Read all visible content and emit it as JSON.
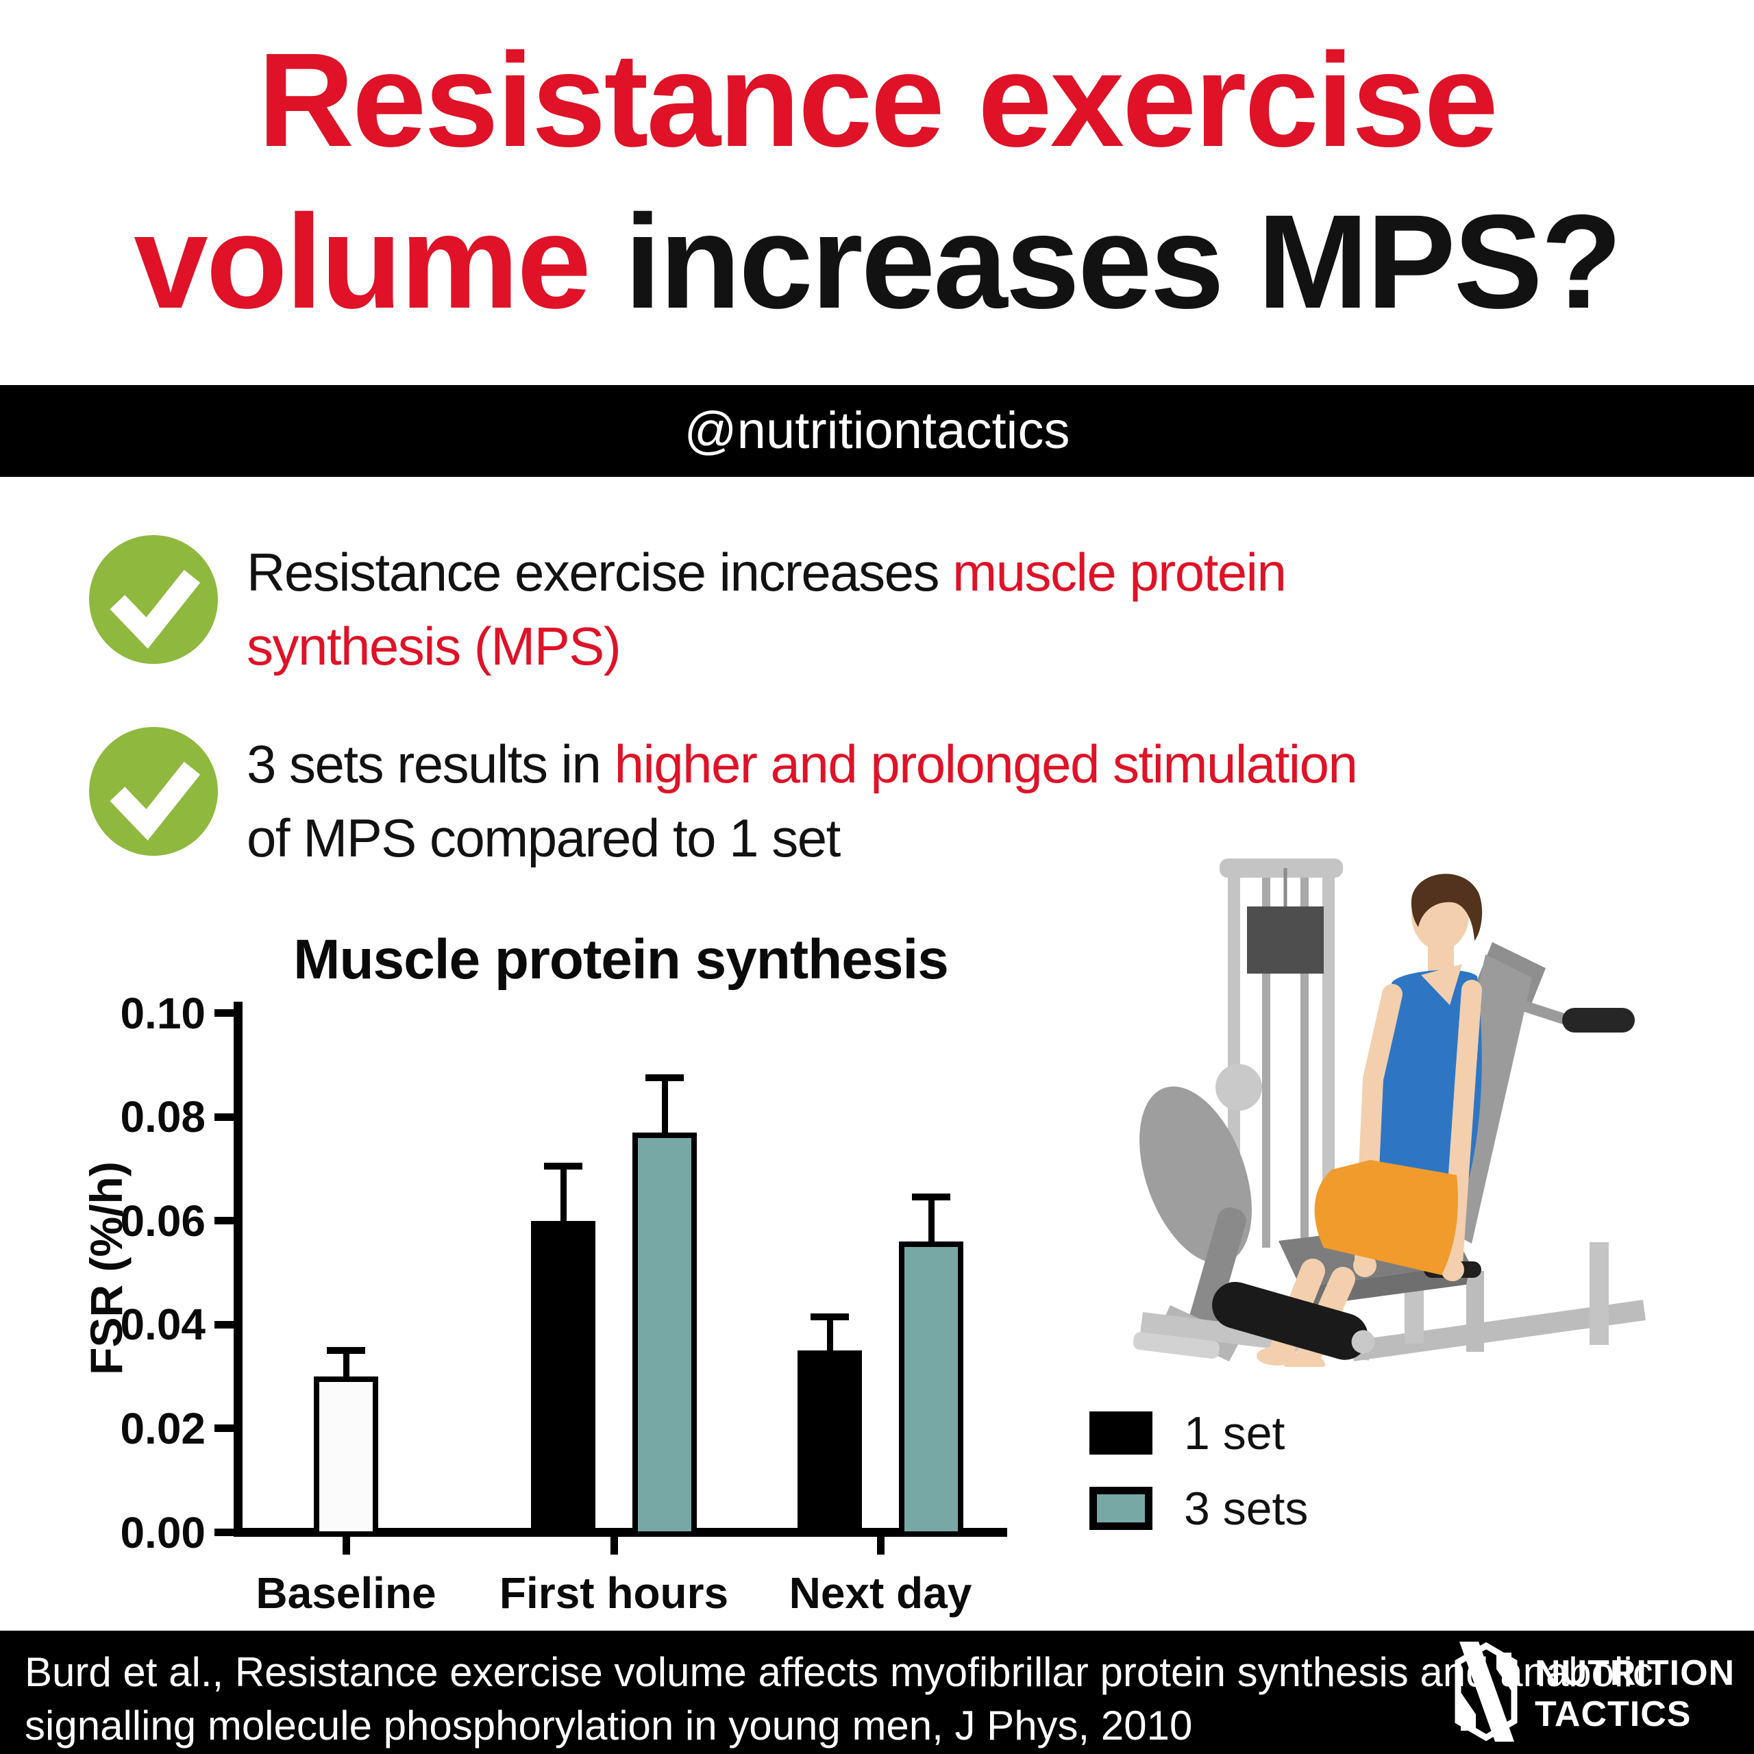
{
  "title": {
    "line1": "Resistance exercise",
    "line2_red": "volume",
    "line2_rest": " increases MPS?"
  },
  "banner": {
    "handle": "@nutritiontactics"
  },
  "bullets": [
    {
      "black1": "Resistance exercise increases ",
      "red_line1": "muscle protein",
      "red_line2": "synthesis (MPS)",
      "black2": ""
    },
    {
      "black1": "3 sets results in ",
      "red_line1": "higher and prolonged stimulation",
      "red_line2": "",
      "black2": "of MPS compared to 1 set"
    }
  ],
  "chart_data": {
    "type": "bar",
    "title": "Muscle protein synthesis",
    "xlabel": "",
    "ylabel": "FSR (%/h)",
    "ylim": [
      0,
      0.1
    ],
    "ytick_labels": [
      "0.00",
      "0.02",
      "0.04",
      "0.06",
      "0.08",
      "0.10"
    ],
    "grid": false,
    "legend_position": "right-bottom",
    "error_bars": "upper",
    "categories": [
      "Baseline",
      "First hours",
      "Next day"
    ],
    "series": [
      {
        "name": "Baseline",
        "color": "#fbfbfb",
        "points": [
          {
            "category": "Baseline",
            "value": 0.03,
            "error_top": 0.0345
          }
        ]
      },
      {
        "name": "1 set",
        "color": "#000000",
        "points": [
          {
            "category": "First hours",
            "value": 0.06,
            "error_top": 0.07
          },
          {
            "category": "Next day",
            "value": 0.035,
            "error_top": 0.041
          }
        ]
      },
      {
        "name": "3 sets",
        "color": "#78a8a6",
        "points": [
          {
            "category": "First hours",
            "value": 0.077,
            "error_top": 0.087
          },
          {
            "category": "Next day",
            "value": 0.056,
            "error_top": 0.064
          }
        ]
      }
    ]
  },
  "legend": [
    {
      "label": "1 set",
      "color": "#000000"
    },
    {
      "label": "3 sets",
      "color": "#78a8a6"
    }
  ],
  "footer": {
    "citation_line1": "Burd et al., Resistance exercise volume affects myofibrillar protein synthesis and anabolic",
    "citation_line2": "signalling molecule phosphorylation in young men, J Phys, 2010",
    "brand_line1": "NUTRITION",
    "brand_line2": "TACTICS"
  },
  "colors": {
    "accent_red": "#df1227",
    "check_green": "#8fb93e",
    "bar_teal": "#78a8a6",
    "banner_black": "#000000",
    "tank_blue": "#2e76c4",
    "shorts_orange": "#f09b2c",
    "skin": "#f3cfae",
    "machine_gray": "#c4c4c4"
  },
  "illustration": {
    "name": "man on seated leg extension machine"
  }
}
